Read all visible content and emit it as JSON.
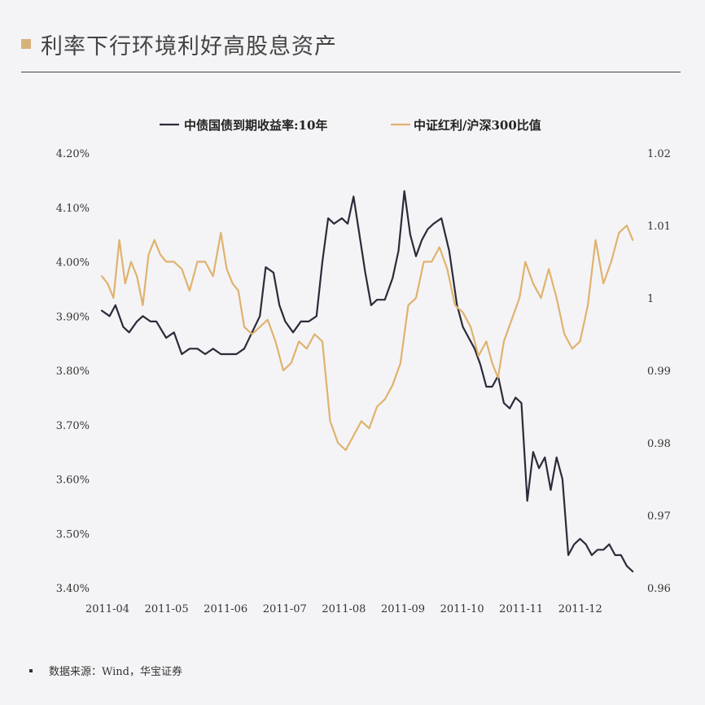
{
  "header": {
    "title": "利率下行环境利好高股息资产",
    "marker_color": "#d8b27b"
  },
  "source": {
    "text": "数据来源：Wind，华宝证券"
  },
  "chart_data": {
    "type": "line",
    "title": "利率下行环境利好高股息资产",
    "legend_position": "top-center",
    "grid": false,
    "x_ticks": [
      "2011-04",
      "2011-05",
      "2011-06",
      "2011-07",
      "2011-08",
      "2011-09",
      "2011-10",
      "2011-11",
      "2011-12"
    ],
    "x_range": [
      "2011-04-01",
      "2011-12-31"
    ],
    "y_left": {
      "min": 3.4,
      "max": 4.2,
      "ticks": [
        "3.40%",
        "3.50%",
        "3.60%",
        "3.70%",
        "3.80%",
        "3.90%",
        "4.00%",
        "4.10%",
        "4.20%"
      ]
    },
    "y_right": {
      "min": 0.96,
      "max": 1.02,
      "ticks": [
        "0.96",
        "0.97",
        "0.98",
        "0.99",
        "1",
        "1.01",
        "1.02"
      ]
    },
    "series": [
      {
        "name": "中债国债到期收益率:10年",
        "axis": "left",
        "color": "#2b2b3a",
        "dates": [
          "2011-04-01",
          "2011-04-05",
          "2011-04-08",
          "2011-04-12",
          "2011-04-15",
          "2011-04-19",
          "2011-04-22",
          "2011-04-26",
          "2011-04-29",
          "2011-05-04",
          "2011-05-08",
          "2011-05-12",
          "2011-05-16",
          "2011-05-20",
          "2011-05-24",
          "2011-05-28",
          "2011-06-01",
          "2011-06-05",
          "2011-06-09",
          "2011-06-13",
          "2011-06-17",
          "2011-06-21",
          "2011-06-24",
          "2011-06-28",
          "2011-07-01",
          "2011-07-04",
          "2011-07-08",
          "2011-07-12",
          "2011-07-16",
          "2011-07-20",
          "2011-07-23",
          "2011-07-26",
          "2011-07-29",
          "2011-08-02",
          "2011-08-05",
          "2011-08-08",
          "2011-08-11",
          "2011-08-14",
          "2011-08-17",
          "2011-08-20",
          "2011-08-24",
          "2011-08-28",
          "2011-08-31",
          "2011-09-03",
          "2011-09-06",
          "2011-09-09",
          "2011-09-12",
          "2011-09-15",
          "2011-09-18",
          "2011-09-22",
          "2011-09-26",
          "2011-09-30",
          "2011-10-03",
          "2011-10-06",
          "2011-10-09",
          "2011-10-12",
          "2011-10-15",
          "2011-10-18",
          "2011-10-21",
          "2011-10-24",
          "2011-10-27",
          "2011-10-30",
          "2011-11-02",
          "2011-11-05",
          "2011-11-08",
          "2011-11-11",
          "2011-11-14",
          "2011-11-17",
          "2011-11-20",
          "2011-11-23",
          "2011-11-26",
          "2011-11-29",
          "2011-12-02",
          "2011-12-05",
          "2011-12-08",
          "2011-12-11",
          "2011-12-14",
          "2011-12-17",
          "2011-12-20",
          "2011-12-23",
          "2011-12-26",
          "2011-12-29"
        ],
        "values": [
          3.91,
          3.9,
          3.92,
          3.88,
          3.87,
          3.89,
          3.9,
          3.89,
          3.89,
          3.86,
          3.87,
          3.83,
          3.84,
          3.84,
          3.83,
          3.84,
          3.83,
          3.83,
          3.83,
          3.84,
          3.87,
          3.9,
          3.99,
          3.98,
          3.92,
          3.89,
          3.87,
          3.89,
          3.89,
          3.9,
          4.0,
          4.08,
          4.07,
          4.08,
          4.07,
          4.12,
          4.05,
          3.98,
          3.92,
          3.93,
          3.93,
          3.97,
          4.02,
          4.13,
          4.05,
          4.01,
          4.04,
          4.06,
          4.07,
          4.08,
          4.02,
          3.92,
          3.88,
          3.86,
          3.84,
          3.81,
          3.77,
          3.77,
          3.79,
          3.74,
          3.73,
          3.75,
          3.74,
          3.56,
          3.65,
          3.62,
          3.64,
          3.58,
          3.64,
          3.6,
          3.46,
          3.48,
          3.49,
          3.48,
          3.46,
          3.47,
          3.47,
          3.48,
          3.46,
          3.46,
          3.44,
          3.43
        ]
      },
      {
        "name": "中证红利/沪深300比值",
        "axis": "right",
        "color": "#e0b26e",
        "dates": [
          "2011-04-01",
          "2011-04-04",
          "2011-04-07",
          "2011-04-10",
          "2011-04-13",
          "2011-04-16",
          "2011-04-19",
          "2011-04-22",
          "2011-04-25",
          "2011-04-28",
          "2011-05-01",
          "2011-05-04",
          "2011-05-08",
          "2011-05-12",
          "2011-05-16",
          "2011-05-20",
          "2011-05-24",
          "2011-05-28",
          "2011-06-01",
          "2011-06-04",
          "2011-06-07",
          "2011-06-10",
          "2011-06-13",
          "2011-06-17",
          "2011-06-21",
          "2011-06-25",
          "2011-06-29",
          "2011-07-03",
          "2011-07-07",
          "2011-07-11",
          "2011-07-15",
          "2011-07-19",
          "2011-07-23",
          "2011-07-27",
          "2011-07-31",
          "2011-08-04",
          "2011-08-08",
          "2011-08-12",
          "2011-08-16",
          "2011-08-20",
          "2011-08-24",
          "2011-08-28",
          "2011-09-01",
          "2011-09-05",
          "2011-09-09",
          "2011-09-13",
          "2011-09-17",
          "2011-09-21",
          "2011-09-25",
          "2011-09-29",
          "2011-10-03",
          "2011-10-07",
          "2011-10-11",
          "2011-10-15",
          "2011-10-18",
          "2011-10-21",
          "2011-10-24",
          "2011-10-28",
          "2011-11-01",
          "2011-11-04",
          "2011-11-08",
          "2011-11-12",
          "2011-11-16",
          "2011-11-20",
          "2011-11-24",
          "2011-11-28",
          "2011-12-02",
          "2011-12-06",
          "2011-12-10",
          "2011-12-14",
          "2011-12-18",
          "2011-12-22",
          "2011-12-26",
          "2011-12-29"
        ],
        "values": [
          1.003,
          1.002,
          1.0,
          1.008,
          1.002,
          1.005,
          1.003,
          0.999,
          1.006,
          1.008,
          1.006,
          1.005,
          1.005,
          1.004,
          1.001,
          1.005,
          1.005,
          1.003,
          1.009,
          1.004,
          1.002,
          1.001,
          0.996,
          0.995,
          0.996,
          0.997,
          0.994,
          0.99,
          0.991,
          0.994,
          0.993,
          0.995,
          0.994,
          0.983,
          0.98,
          0.979,
          0.981,
          0.983,
          0.982,
          0.985,
          0.986,
          0.988,
          0.991,
          0.999,
          1.0,
          1.005,
          1.005,
          1.007,
          1.004,
          0.999,
          0.998,
          0.996,
          0.992,
          0.994,
          0.991,
          0.989,
          0.994,
          0.997,
          1.0,
          1.005,
          1.002,
          1.0,
          1.004,
          1.0,
          0.995,
          0.993,
          0.994,
          0.999,
          1.008,
          1.002,
          1.005,
          1.009,
          1.01,
          1.008
        ]
      }
    ]
  }
}
